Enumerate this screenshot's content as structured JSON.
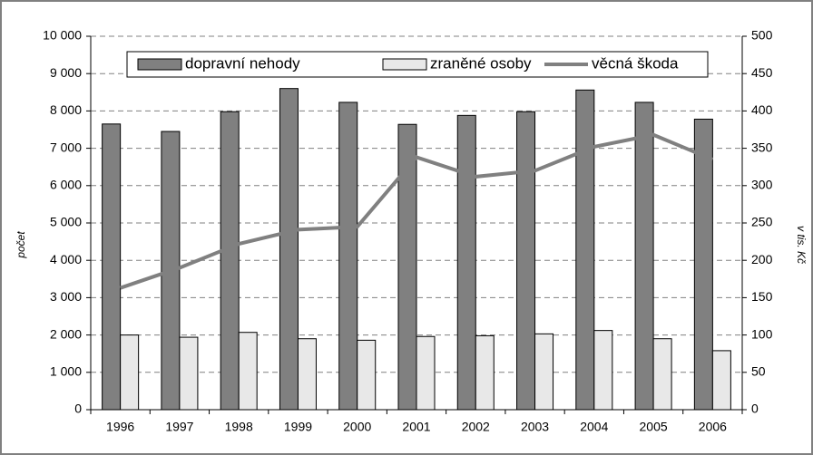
{
  "chart_data": {
    "type": "bar",
    "categories": [
      "1996",
      "1997",
      "1998",
      "1999",
      "2000",
      "2001",
      "2002",
      "2003",
      "2004",
      "2005",
      "2006"
    ],
    "series": [
      {
        "name": "dopravní nehody",
        "color": "#808080",
        "type": "bar",
        "values": [
          7650,
          7450,
          7980,
          8600,
          8230,
          7640,
          7880,
          7980,
          8560,
          8230,
          7780
        ]
      },
      {
        "name": "zraněné osoby",
        "color": "#e8e8e8",
        "type": "bar",
        "values": [
          2000,
          1940,
          2070,
          1900,
          1860,
          1960,
          1980,
          2030,
          2120,
          1900,
          1580
        ]
      },
      {
        "name": "věcná škoda",
        "color": "#808080",
        "type": "line",
        "axis": "y2",
        "values": [
          163,
          190,
          222,
          241,
          245,
          338,
          312,
          320,
          352,
          368,
          335
        ]
      }
    ],
    "ylabel": "počet",
    "y2label": "v tis. Kč",
    "ylim": [
      0,
      10000
    ],
    "yticks": [
      0,
      {
        "value": 1000,
        "label": "1 000"
      },
      {
        "value": 2000,
        "label": "2 000"
      },
      {
        "value": 3000,
        "label": "3 000"
      },
      {
        "value": 4000,
        "label": "4 000"
      },
      {
        "value": 5000,
        "label": "5 000"
      },
      {
        "value": 6000,
        "label": "6 000"
      },
      {
        "value": 7000,
        "label": "7 000"
      },
      {
        "value": 8000,
        "label": "8 000"
      },
      {
        "value": 9000,
        "label": "9 000"
      },
      {
        "value": 10000,
        "label": "10 000"
      }
    ],
    "y2lim": [
      0,
      500
    ],
    "y2ticks": [
      0,
      50,
      100,
      150,
      200,
      250,
      300,
      350,
      400,
      450,
      500
    ],
    "grid": true,
    "legend": "top"
  }
}
